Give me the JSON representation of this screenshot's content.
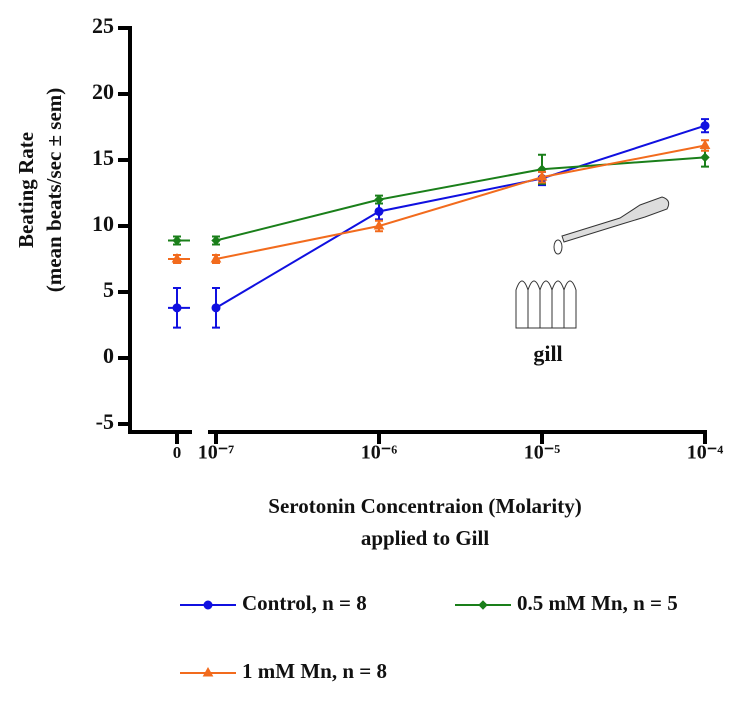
{
  "chart_data": {
    "type": "line",
    "y_label": [
      "Beating Rate",
      "(mean beats/sec ± sem)"
    ],
    "x_label": [
      "Serotonin Concentraion (Molarity)",
      "applied to Gill"
    ],
    "annotation": "gill",
    "x": [
      0,
      1e-07,
      1e-06,
      1e-05,
      0.0001
    ],
    "xlim": [
      1e-07,
      0.0001
    ],
    "xscale": "log",
    "xticks": [
      0,
      {
        "value": 1e-07,
        "label": "10⁻⁷"
      },
      {
        "value": 1e-06,
        "label": "10⁻⁶"
      },
      {
        "value": 1e-05,
        "label": "10⁻⁵"
      },
      {
        "value": 0.0001,
        "label": "10⁻⁴"
      }
    ],
    "ylim": [
      -5,
      25
    ],
    "yticks": [
      -5,
      0,
      5,
      10,
      15,
      20,
      25
    ],
    "series": [
      {
        "name": "Control, n = 8",
        "color": "#1010e0",
        "marker": "circle",
        "values": [
          3.8,
          3.8,
          11.1,
          13.6,
          17.6
        ],
        "errors": [
          1.5,
          1.5,
          0.6,
          0.5,
          0.5
        ]
      },
      {
        "name": "0.5 mM Mn, n = 5",
        "color": "#1a7f1a",
        "marker": "diamond",
        "values": [
          8.9,
          8.9,
          12.0,
          14.3,
          15.2
        ],
        "errors": [
          0.3,
          0.3,
          0.3,
          1.1,
          0.7
        ]
      },
      {
        "name": "1 mM Mn, n = 8",
        "color": "#f26b1d",
        "marker": "triangle",
        "values": [
          7.5,
          7.5,
          10.0,
          13.7,
          16.1
        ],
        "errors": [
          0.3,
          0.3,
          0.4,
          0.4,
          0.4
        ]
      }
    ]
  }
}
